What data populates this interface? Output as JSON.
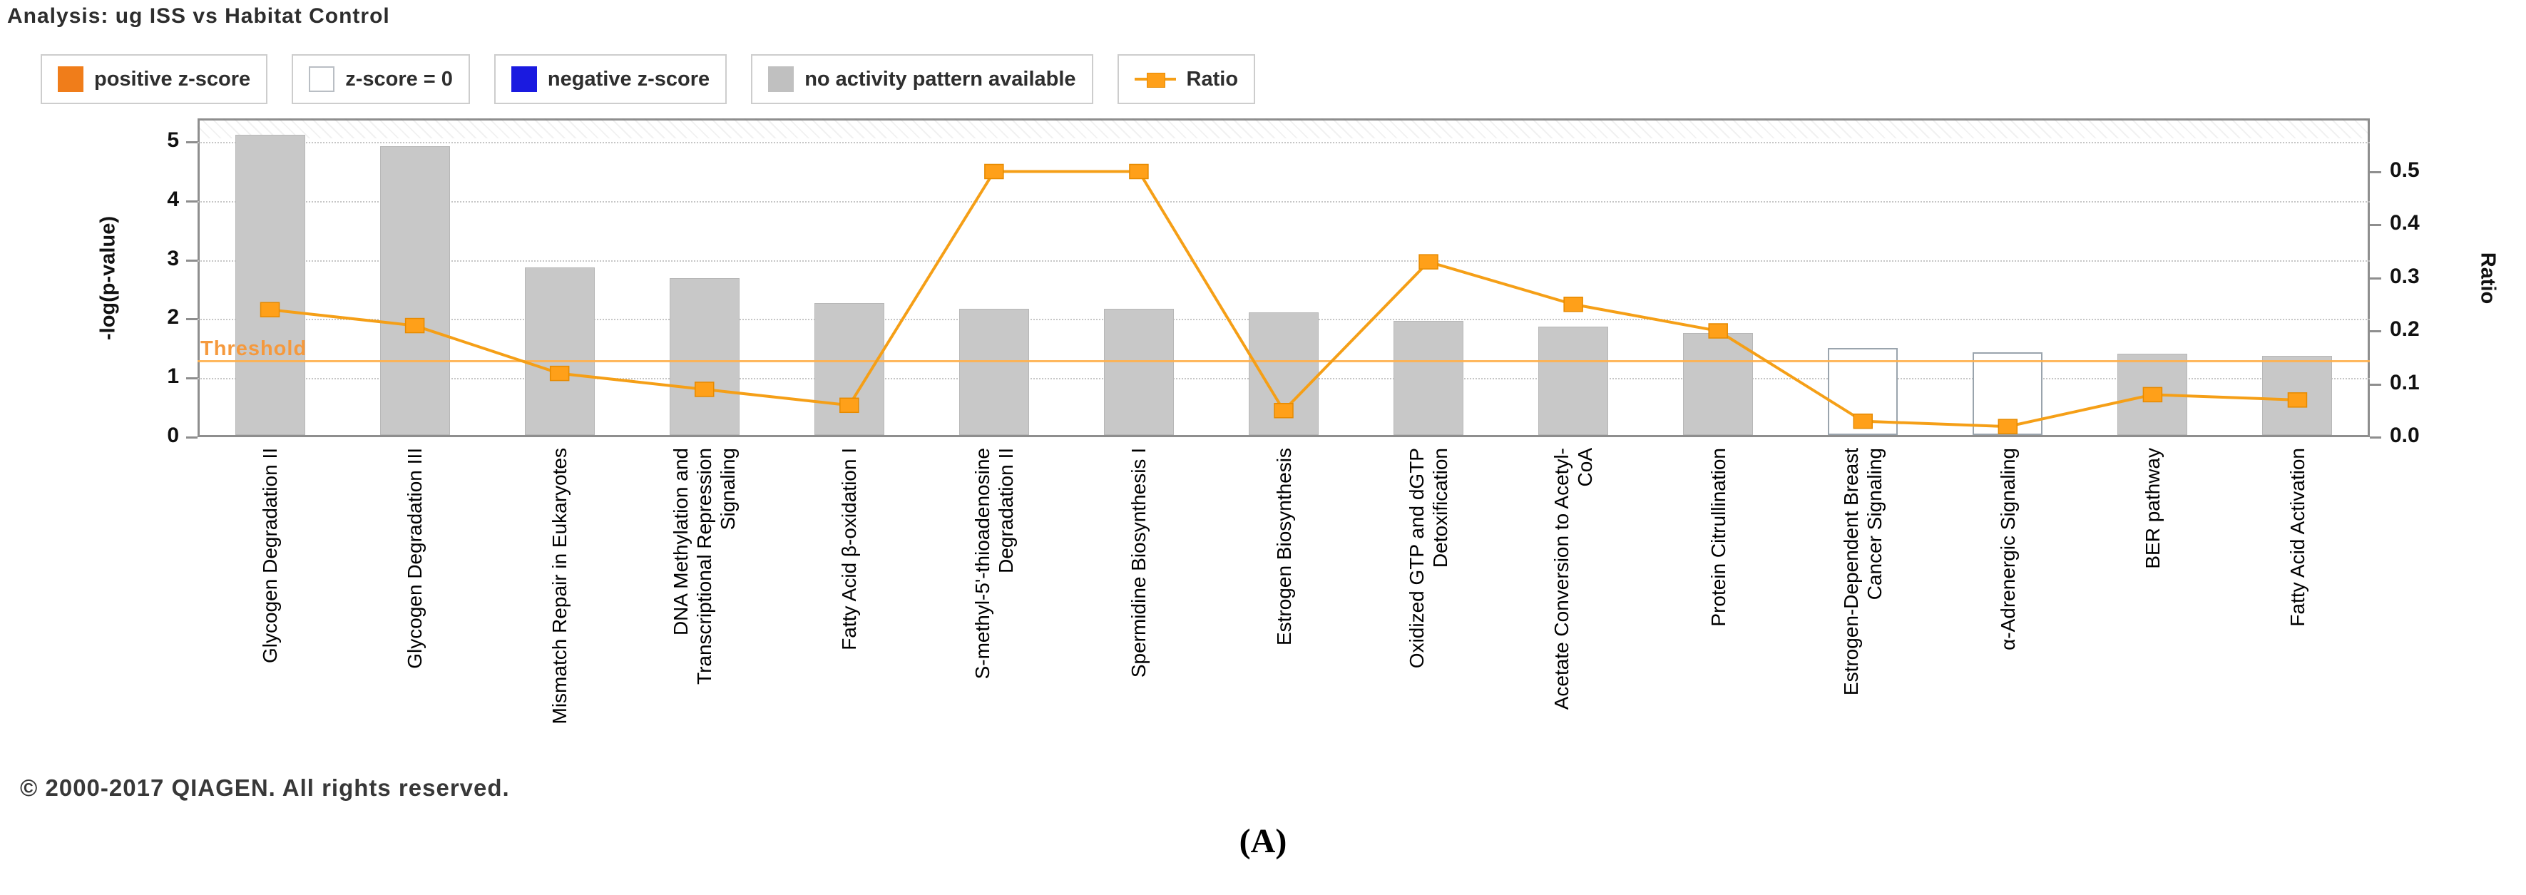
{
  "header": {
    "title": "Analysis: ug ISS vs Habitat Control"
  },
  "legend": {
    "items": [
      {
        "label": "positive z-score",
        "swatch": "square",
        "color": "#f07d1a"
      },
      {
        "label": "z-score = 0",
        "swatch": "square-outline",
        "color": "#ffffff"
      },
      {
        "label": "negative z-score",
        "swatch": "square",
        "color": "#1a1ae0"
      },
      {
        "label": "no activity pattern available",
        "swatch": "square",
        "color": "#c0c0c0"
      },
      {
        "label": "Ratio",
        "swatch": "line-marker",
        "color": "#ffa019"
      }
    ]
  },
  "colors": {
    "bar_no_activity": "#c8c8c8",
    "bar_zscore0": "#ffffff",
    "ratio_line": "#f59f17",
    "ratio_marker": "#ffa019",
    "threshold": "#ffb04d",
    "positive_zscore": "#f07d1a",
    "negative_zscore": "#1a1ae0"
  },
  "chart_data": {
    "type": "bar",
    "title": "Analysis: ug ISS vs Habitat Control",
    "categories": [
      [
        "Glycogen Degradation II"
      ],
      [
        "Glycogen Degradation III"
      ],
      [
        "Mismatch Repair in Eukaryotes"
      ],
      [
        "DNA Methylation and",
        "Transcriptional Repression",
        "Signaling"
      ],
      [
        "Fatty Acid β-oxidation I"
      ],
      [
        "S-methyl-5'-thioadenosine",
        "Degradation II"
      ],
      [
        "Spermidine Biosynthesis I"
      ],
      [
        "Estrogen Biosynthesis"
      ],
      [
        "Oxidized GTP and dGTP",
        "Detoxification"
      ],
      [
        "Acetate Conversion to Acetyl-",
        "CoA"
      ],
      [
        "Protein Citrullination"
      ],
      [
        "Estrogen-Dependent Breast",
        "Cancer Signaling"
      ],
      [
        "α-Adrenergic Signaling"
      ],
      [
        "BER pathway"
      ],
      [
        "Fatty Acid Activation"
      ]
    ],
    "series": [
      {
        "name": "-log(p-value)",
        "type": "bar",
        "values": [
          5.12,
          4.93,
          2.87,
          2.69,
          2.27,
          2.18,
          2.18,
          2.11,
          1.97,
          1.87,
          1.76,
          1.51,
          1.44,
          1.41,
          1.38
        ],
        "bar_styles": [
          "no-activity",
          "no-activity",
          "no-activity",
          "no-activity",
          "no-activity",
          "no-activity",
          "no-activity",
          "no-activity",
          "no-activity",
          "no-activity",
          "no-activity",
          "zscore0",
          "zscore0",
          "no-activity",
          "no-activity"
        ]
      },
      {
        "name": "Ratio",
        "type": "line",
        "values": [
          0.24,
          0.21,
          0.12,
          0.09,
          0.06,
          0.5,
          0.5,
          0.05,
          0.33,
          0.25,
          0.2,
          0.03,
          0.02,
          0.08,
          0.07
        ]
      }
    ],
    "ylabel_left": "-log(p-value)",
    "ylabel_right": "Ratio",
    "ylim_left": [
      0,
      5.4
    ],
    "ylim_right": [
      0,
      0.6
    ],
    "yticks_left": [
      0,
      1,
      2,
      3,
      4,
      5
    ],
    "yticks_right": [
      0.0,
      0.1,
      0.2,
      0.3,
      0.4,
      0.5
    ],
    "grid": "horizontal dotted gridlines at left-axis ticks 1-5",
    "legend_position": "top",
    "threshold": {
      "value": 1.3,
      "label": "Threshold"
    }
  },
  "footer": {
    "copyright": "© 2000-2017 QIAGEN. All rights reserved.",
    "caption": "(A)"
  }
}
